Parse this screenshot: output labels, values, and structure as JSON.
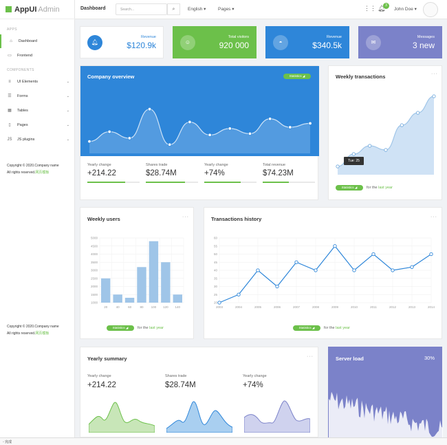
{
  "app": {
    "name_a": "AppUI",
    "name_b": "Admin"
  },
  "sidebar": {
    "apps_heading": "APPS",
    "items_apps": [
      {
        "label": "Dashboard",
        "icon": "home-icon"
      },
      {
        "label": "Frontend",
        "icon": "monitor-icon"
      }
    ],
    "components_heading": "COMPONENTS",
    "items_components": [
      {
        "label": "UI Elements",
        "icon": "layers-icon"
      },
      {
        "label": "Forms",
        "icon": "form-icon"
      },
      {
        "label": "Tables",
        "icon": "table-icon"
      },
      {
        "label": "Pages",
        "icon": "page-icon"
      },
      {
        "label": "JS plugins",
        "icon": "plugin-icon"
      }
    ],
    "copyright": "Copyright © 2020.Company name",
    "rights": "All rights reserved.",
    "rights_link": "网页模板"
  },
  "topbar": {
    "title": "Dashboard",
    "search_placeholder": "Search...",
    "language": "English",
    "pages": "Pages",
    "notif_count": "3",
    "user": "John Doe"
  },
  "stats": [
    {
      "label": "Revenue",
      "value": "$120.9k",
      "icon": "bell-icon"
    },
    {
      "label": "Total visitors",
      "value": "920 000",
      "icon": "users-icon"
    },
    {
      "label": "Revenue",
      "value": "$340.5k",
      "icon": "gauge-icon"
    },
    {
      "label": "Messages",
      "value": "3 new",
      "icon": "mail-icon"
    }
  ],
  "company_overview": {
    "title": "Company overview",
    "tag": "Statistics",
    "kpis": [
      {
        "label": "Yearly change",
        "value": "+214.22",
        "progress": 0.72
      },
      {
        "label": "Shares trade",
        "value": "$28.74M",
        "progress": 0.75
      },
      {
        "label": "Yearly change",
        "value": "+74%",
        "progress": 0.7
      },
      {
        "label": "Total revenue",
        "value": "$74.23M",
        "progress": 0.5
      }
    ]
  },
  "weekly_transactions": {
    "title": "Weekly transactions",
    "tooltip": "Tue: 25",
    "tag": "Statistics",
    "footer_a": "for the",
    "footer_b": "last year"
  },
  "weekly_users": {
    "title": "Weekly users",
    "tag": "Statistics",
    "footer_a": "for the",
    "footer_b": "last year"
  },
  "transactions_history": {
    "title": "Transactions history",
    "tag": "Statistics",
    "footer_a": "for the",
    "footer_b": "last year"
  },
  "yearly_summary": {
    "title": "Yearly summary",
    "kpis": [
      {
        "label": "Yearly change",
        "value": "+214.22"
      },
      {
        "label": "Shares trade",
        "value": "$28.74M"
      },
      {
        "label": "Yearly change",
        "value": "+74%"
      }
    ]
  },
  "server_load": {
    "title": "Server load",
    "value": "30%"
  },
  "status": {
    "text": "完成"
  },
  "colors": {
    "green": "#6cc04a",
    "blue": "#2e86d9",
    "lightblue": "#9fc5e8",
    "purple": "#7b82c9"
  },
  "chart_data": [
    {
      "type": "line",
      "name": "company-overview",
      "values": [
        3,
        4.5,
        3.5,
        8,
        2.5,
        6,
        4,
        5,
        4.2,
        6.5,
        5.2,
        5.8
      ]
    },
    {
      "type": "line",
      "name": "weekly-transactions",
      "x": [
        0,
        1,
        2,
        3,
        4,
        5,
        6
      ],
      "values": [
        10,
        25,
        35,
        30,
        60,
        75,
        95
      ]
    },
    {
      "type": "bar",
      "name": "weekly-users",
      "categories": [
        "20",
        "40",
        "60",
        "80",
        "100",
        "120",
        "140"
      ],
      "values": [
        2500,
        1500,
        1300,
        3200,
        4800,
        3500,
        1500
      ],
      "ylim": [
        1000,
        5000
      ],
      "yticks": [
        "5000",
        "4500",
        "4000",
        "3500",
        "3000",
        "2500",
        "2000",
        "1500",
        "1000"
      ]
    },
    {
      "type": "line",
      "name": "transactions-history",
      "categories": [
        "2003",
        "2004",
        "2005",
        "2006",
        "2007",
        "2008",
        "2009",
        "2010",
        "2011",
        "2012",
        "2013",
        "2014"
      ],
      "values": [
        20,
        25,
        40,
        30,
        45,
        40,
        55,
        40,
        50,
        40,
        42,
        50
      ],
      "ylim": [
        20,
        60
      ],
      "yticks": [
        "60",
        "55",
        "50",
        "45",
        "40",
        "35",
        "30",
        "25",
        "20"
      ]
    }
  ]
}
